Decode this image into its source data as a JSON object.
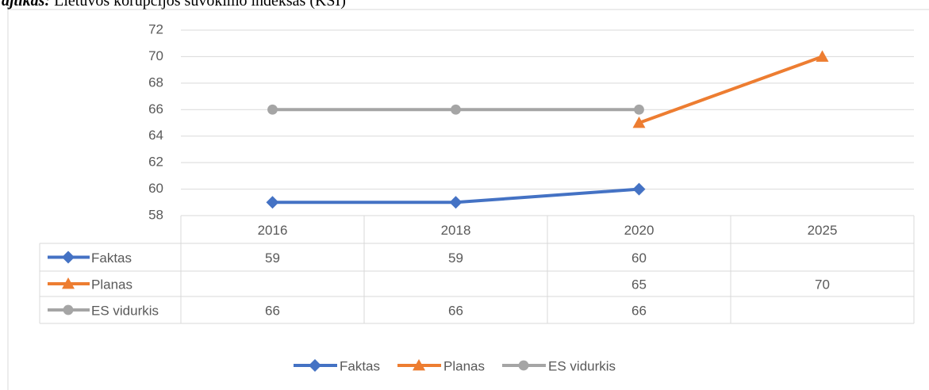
{
  "chart_data": {
    "type": "line",
    "title_prefix": "ajtikas:",
    "title": "Lietuvos korupcijos suvokimo indeksas (KSI)",
    "categories": [
      "2016",
      "2018",
      "2020",
      "2025"
    ],
    "series": [
      {
        "name": "Faktas",
        "color": "#4472c4",
        "marker": "diamond",
        "values": [
          59,
          59,
          60,
          null
        ]
      },
      {
        "name": "Planas",
        "color": "#ed7d31",
        "marker": "triangle",
        "values": [
          null,
          null,
          65,
          70
        ]
      },
      {
        "name": "ES vidurkis",
        "color": "#a5a5a5",
        "marker": "circle",
        "values": [
          66,
          66,
          66,
          null
        ]
      }
    ],
    "ylim": [
      58,
      72
    ],
    "yticks": [
      58,
      60,
      62,
      64,
      66,
      68,
      70,
      72
    ],
    "grid": true,
    "legend": "bottom",
    "data_table": true
  }
}
